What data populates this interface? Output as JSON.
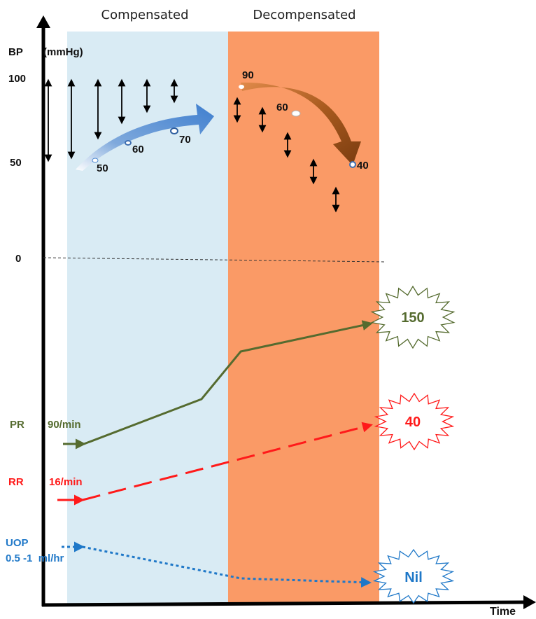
{
  "phases": {
    "compensated": "Compensated",
    "decompensated": "Decompensated"
  },
  "axis": {
    "y_label": "BP",
    "y_unit": "(mmHg)",
    "y_ticks": [
      "100",
      "50",
      "0"
    ],
    "x_label": "Time"
  },
  "bp": {
    "compensated_points": [
      "50",
      "60",
      "70"
    ],
    "decompensated_points": [
      "90",
      "60",
      "40"
    ]
  },
  "parameters": {
    "pr": {
      "label": "PR",
      "initial": "90/min",
      "final": "150"
    },
    "rr": {
      "label": "RR",
      "initial": "16/min",
      "final": "40"
    },
    "uop": {
      "label": "UOP",
      "initial": "0.5 -1  ml/hr",
      "final": "Nil"
    }
  },
  "colors": {
    "compensated_bg": "#d9ebf4",
    "decompensated_bg": "#fa9a66",
    "pr": "#556b2f",
    "rr": "#ff1a1a",
    "uop": "#1f78c8",
    "rising_arrow": "#4a86cf",
    "falling_arrow": "#8b4513"
  }
}
